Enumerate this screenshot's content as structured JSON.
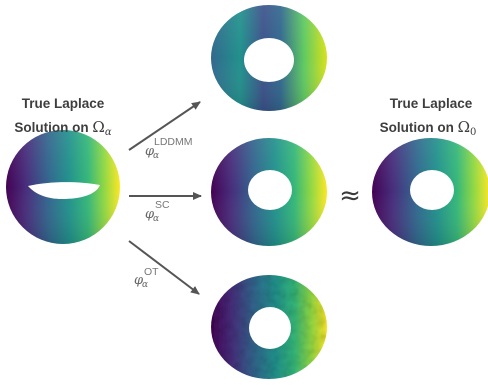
{
  "source": {
    "line1": "True Laplace",
    "line2_text": "Solution on ",
    "line2_symbol": "Ω",
    "line2_sub": "α"
  },
  "target": {
    "line1": "True Laplace",
    "line2_text": "Solution on ",
    "line2_symbol": "Ω",
    "line2_sub": "0"
  },
  "maps": [
    {
      "symbol": "φ",
      "sub": "α",
      "sup": "LDDMM"
    },
    {
      "symbol": "φ",
      "sub": "α",
      "sup": "SC"
    },
    {
      "symbol": "φ",
      "sub": "α",
      "sup": "OT"
    }
  ],
  "approx_symbol": "≈",
  "colors": {
    "viridis_dark": "#440154",
    "viridis_blue": "#3b528b",
    "viridis_teal": "#21918c",
    "viridis_green": "#5ec962",
    "viridis_yellow": "#fde725",
    "arrow": "#555555"
  }
}
